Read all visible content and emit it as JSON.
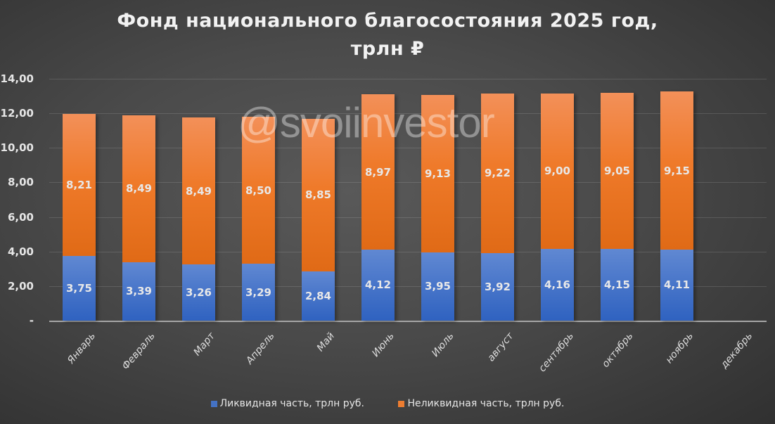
{
  "chart_data": {
    "type": "bar",
    "stacked": true,
    "title": "Фонд национального благосостояния 2025 год, трлн ₽",
    "title_lines": [
      "Фонд национального благосостояния 2025 год,",
      "трлн ₽"
    ],
    "xlabel": "",
    "ylabel": "",
    "ylim": [
      0,
      14
    ],
    "yticks": [
      "-",
      "2,00",
      "4,00",
      "6,00",
      "8,00",
      "10,00",
      "12,00",
      "14,00"
    ],
    "grid": true,
    "legend_position": "bottom",
    "categories": [
      "Январь",
      "Февраль",
      "Март",
      "Апрель",
      "Май",
      "Июнь",
      "Июль",
      "август",
      "сентябрь",
      "октябрь",
      "ноябрь",
      "декабрь"
    ],
    "series": [
      {
        "name": "Ликвидная часть, трлн руб.",
        "color": "#4472c4",
        "values": [
          3.75,
          3.39,
          3.26,
          3.29,
          2.84,
          4.12,
          3.95,
          3.92,
          4.16,
          4.15,
          4.11,
          null
        ],
        "labels": [
          "3,75",
          "3,39",
          "3,26",
          "3,29",
          "2,84",
          "4,12",
          "3,95",
          "3,92",
          "4,16",
          "4,15",
          "4,11",
          ""
        ]
      },
      {
        "name": "Неликвидная часть, трлн руб.",
        "color": "#ed7d31",
        "values": [
          8.21,
          8.49,
          8.49,
          8.5,
          8.85,
          8.97,
          9.13,
          9.22,
          9.0,
          9.05,
          9.15,
          null
        ],
        "labels": [
          "8,21",
          "8,49",
          "8,49",
          "8,50",
          "8,85",
          "8,97",
          "9,13",
          "9,22",
          "9,00",
          "9,05",
          "9,15",
          ""
        ]
      }
    ],
    "annotations": [
      "@svoiinvestor"
    ]
  },
  "title": {
    "line1": "Фонд национального благосостояния 2025 год,",
    "line2": "трлн ₽"
  },
  "watermark": "@svoiinvestor",
  "legend": {
    "items": [
      {
        "label": "Ликвидная часть, трлн руб.",
        "color": "#4472c4"
      },
      {
        "label": "Неликвидная часть, трлн руб.",
        "color": "#ed7d31"
      }
    ]
  }
}
